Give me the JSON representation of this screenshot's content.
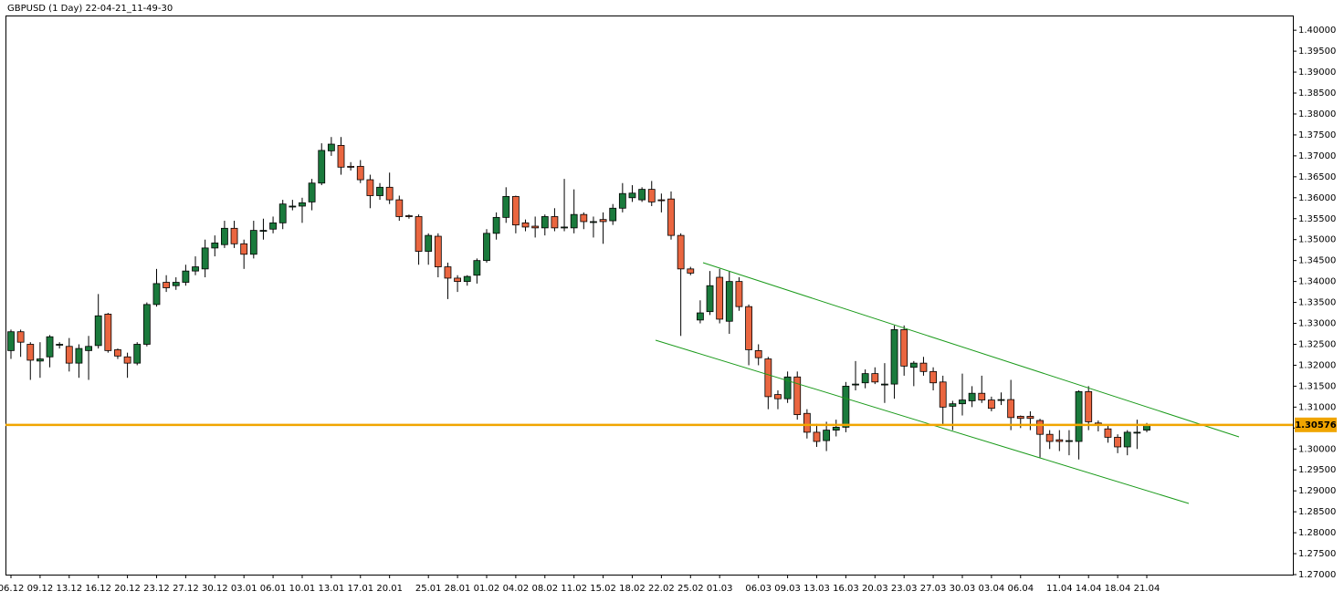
{
  "chart_data": {
    "type": "candlestick",
    "title": "GBPUSD (1 Day) 22-04-21_11-49-30",
    "categories": [
      "06.12",
      null,
      null,
      "09.12",
      null,
      null,
      "13.12",
      null,
      null,
      "16.12",
      null,
      null,
      "20.12",
      null,
      null,
      "23.12",
      null,
      null,
      "27.12",
      null,
      null,
      "30.12",
      null,
      null,
      "03.01",
      null,
      null,
      "06.01",
      null,
      null,
      "10.01",
      null,
      null,
      "13.01",
      null,
      null,
      "17.01",
      null,
      null,
      "20.01",
      null,
      null,
      null,
      "25.01",
      null,
      null,
      "28.01",
      null,
      null,
      "01.02",
      null,
      null,
      "04.02",
      null,
      null,
      "08.02",
      null,
      null,
      "11.02",
      null,
      null,
      "15.02",
      null,
      null,
      "18.02",
      null,
      null,
      "22.02",
      null,
      null,
      "25.02",
      null,
      null,
      "01.03",
      null,
      null,
      null,
      "06.03",
      null,
      null,
      "09.03",
      null,
      null,
      "13.03",
      null,
      null,
      "16.03",
      null,
      null,
      "20.03",
      null,
      null,
      "23.03",
      null,
      null,
      "27.03",
      null,
      null,
      "30.03",
      null,
      null,
      "03.04",
      null,
      null,
      "06.04",
      null,
      null,
      null,
      "11.04",
      null,
      null,
      "14.04",
      null,
      null,
      "18.04",
      null,
      null,
      "21.04"
    ],
    "open": [
      1.3235,
      1.328,
      1.325,
      1.321,
      1.322,
      1.3248,
      1.3245,
      1.3205,
      1.3235,
      1.3247,
      1.3322,
      1.3237,
      1.322,
      1.3205,
      1.325,
      1.3345,
      1.3398,
      1.339,
      1.3398,
      1.3425,
      1.343,
      1.348,
      1.3488,
      1.3527,
      1.349,
      1.3465,
      1.352,
      1.3525,
      1.354,
      1.3578,
      1.358,
      1.359,
      1.3635,
      1.3712,
      1.3725,
      1.3675,
      1.3675,
      1.3643,
      1.3605,
      1.3625,
      1.3595,
      1.3557,
      1.3555,
      1.3472,
      1.3508,
      1.3435,
      1.3408,
      1.34,
      1.3415,
      1.345,
      1.3515,
      1.3553,
      1.3603,
      1.354,
      1.3532,
      1.3528,
      1.3555,
      1.353,
      1.3528,
      1.356,
      1.3542,
      1.3548,
      1.3545,
      1.3575,
      1.36,
      1.3595,
      1.362,
      1.3595,
      1.3597,
      1.351,
      1.343,
      1.3308,
      1.3328,
      1.341,
      1.3305,
      1.34,
      1.334,
      1.3235,
      1.3215,
      1.313,
      1.312,
      1.3172,
      1.3085,
      1.304,
      1.302,
      1.3045,
      1.3052,
      1.3153,
      1.3158,
      1.318,
      1.3155,
      1.3155,
      1.3285,
      1.3195,
      1.3205,
      1.3185,
      1.316,
      1.3102,
      1.3108,
      1.3115,
      1.3133,
      1.3117,
      1.3117,
      1.3118,
      1.3078,
      1.3078,
      1.3068,
      1.3035,
      1.3022,
      1.302,
      1.3018,
      1.3137,
      1.3062,
      1.3048,
      1.3028,
      1.3005,
      1.3038,
      1.3045
    ],
    "high": [
      1.3285,
      1.3285,
      1.3255,
      1.3255,
      1.3272,
      1.3255,
      1.3265,
      1.325,
      1.327,
      1.337,
      1.3325,
      1.324,
      1.323,
      1.3255,
      1.335,
      1.343,
      1.3415,
      1.341,
      1.344,
      1.346,
      1.35,
      1.351,
      1.3545,
      1.3545,
      1.35,
      1.3545,
      1.355,
      1.3555,
      1.3595,
      1.3595,
      1.36,
      1.3645,
      1.373,
      1.3745,
      1.3745,
      1.3685,
      1.369,
      1.3655,
      1.3635,
      1.366,
      1.3605,
      1.356,
      1.356,
      1.3515,
      1.3515,
      1.3445,
      1.3415,
      1.3415,
      1.3455,
      1.3525,
      1.3565,
      1.3625,
      1.3605,
      1.3548,
      1.3555,
      1.356,
      1.3575,
      1.3645,
      1.362,
      1.3565,
      1.3555,
      1.3565,
      1.3585,
      1.3635,
      1.363,
      1.3625,
      1.364,
      1.361,
      1.3615,
      1.3515,
      1.3435,
      1.3355,
      1.3425,
      1.343,
      1.3425,
      1.341,
      1.3345,
      1.325,
      1.322,
      1.314,
      1.3185,
      1.3185,
      1.3095,
      1.306,
      1.3065,
      1.307,
      1.316,
      1.321,
      1.319,
      1.3195,
      1.3205,
      1.3295,
      1.3295,
      1.321,
      1.322,
      1.3195,
      1.3175,
      1.3115,
      1.318,
      1.315,
      1.3175,
      1.3125,
      1.3135,
      1.3165,
      1.308,
      1.309,
      1.3072,
      1.3045,
      1.3045,
      1.3045,
      1.314,
      1.315,
      1.3068,
      1.3055,
      1.3035,
      1.3045,
      1.307,
      1.3062
    ],
    "low": [
      1.3215,
      1.322,
      1.3165,
      1.317,
      1.3195,
      1.324,
      1.3185,
      1.317,
      1.3165,
      1.324,
      1.323,
      1.3215,
      1.317,
      1.32,
      1.3245,
      1.334,
      1.3375,
      1.338,
      1.339,
      1.3415,
      1.341,
      1.346,
      1.348,
      1.348,
      1.343,
      1.3455,
      1.35,
      1.3515,
      1.3525,
      1.357,
      1.354,
      1.357,
      1.363,
      1.37,
      1.3655,
      1.3665,
      1.3635,
      1.3575,
      1.3595,
      1.3585,
      1.3545,
      1.355,
      1.344,
      1.344,
      1.341,
      1.3358,
      1.3375,
      1.339,
      1.3395,
      1.3445,
      1.35,
      1.354,
      1.3515,
      1.352,
      1.3505,
      1.351,
      1.352,
      1.352,
      1.3515,
      1.3525,
      1.3505,
      1.349,
      1.3535,
      1.3565,
      1.359,
      1.359,
      1.358,
      1.3565,
      1.35,
      1.327,
      1.3415,
      1.33,
      1.332,
      1.33,
      1.3275,
      1.333,
      1.32,
      1.32,
      1.3095,
      1.3095,
      1.311,
      1.307,
      1.3025,
      1.3005,
      1.2995,
      1.303,
      1.304,
      1.314,
      1.3145,
      1.3155,
      1.311,
      1.312,
      1.3175,
      1.315,
      1.3175,
      1.314,
      1.3055,
      1.3045,
      1.308,
      1.31,
      1.311,
      1.309,
      1.3105,
      1.3045,
      1.305,
      1.3045,
      1.298,
      1.3,
      1.2995,
      1.2985,
      1.2975,
      1.3045,
      1.3042,
      1.3015,
      1.299,
      1.2985,
      1.3,
      1.304
    ],
    "close": [
      1.328,
      1.3255,
      1.3212,
      1.3215,
      1.3268,
      1.325,
      1.3205,
      1.324,
      1.3245,
      1.3318,
      1.3235,
      1.3222,
      1.3205,
      1.325,
      1.3345,
      1.3395,
      1.3385,
      1.3398,
      1.3425,
      1.3435,
      1.348,
      1.3492,
      1.3527,
      1.349,
      1.3465,
      1.3522,
      1.3522,
      1.354,
      1.3585,
      1.358,
      1.3588,
      1.3635,
      1.3713,
      1.3728,
      1.3673,
      1.3673,
      1.3643,
      1.3605,
      1.3625,
      1.3595,
      1.3555,
      1.3555,
      1.3472,
      1.351,
      1.3435,
      1.3408,
      1.34,
      1.3412,
      1.345,
      1.3515,
      1.3553,
      1.3603,
      1.3535,
      1.353,
      1.3528,
      1.3555,
      1.3528,
      1.353,
      1.356,
      1.3543,
      1.3543,
      1.3543,
      1.3575,
      1.361,
      1.3611,
      1.362,
      1.359,
      1.3594,
      1.351,
      1.343,
      1.342,
      1.3325,
      1.339,
      1.331,
      1.34,
      1.334,
      1.3237,
      1.3218,
      1.3125,
      1.312,
      1.3172,
      1.3082,
      1.304,
      1.3018,
      1.3045,
      1.3052,
      1.315,
      1.3155,
      1.318,
      1.316,
      1.3155,
      1.3285,
      1.3198,
      1.3205,
      1.3185,
      1.3158,
      1.31,
      1.3108,
      1.3117,
      1.3133,
      1.3117,
      1.3097,
      1.3118,
      1.3075,
      1.3073,
      1.3073,
      1.3035,
      1.3018,
      1.3018,
      1.302,
      1.3137,
      1.3065,
      1.3058,
      1.3028,
      1.3005,
      1.304,
      1.304,
      1.3058
    ],
    "up_color": "#1a7a3c",
    "down_color": "#ea6640",
    "price_line": {
      "value": 1.30576,
      "color": "#f0a500"
    },
    "ylim": [
      1.27,
      1.4033
    ],
    "yticks": [
      {
        "value": 1.27,
        "label": "1.27000"
      },
      {
        "value": 1.275,
        "label": "1.27500"
      },
      {
        "value": 1.28,
        "label": "1.28000"
      },
      {
        "value": 1.285,
        "label": "1.28500"
      },
      {
        "value": 1.29,
        "label": "1.29000"
      },
      {
        "value": 1.295,
        "label": "1.29500"
      },
      {
        "value": 1.3,
        "label": "1.30000"
      },
      {
        "value": 1.305,
        "label": "1.30500"
      },
      {
        "value": 1.31,
        "label": "1.31000"
      },
      {
        "value": 1.315,
        "label": "1.31500"
      },
      {
        "value": 1.32,
        "label": "1.32000"
      },
      {
        "value": 1.325,
        "label": "1.32500"
      },
      {
        "value": 1.33,
        "label": "1.33000"
      },
      {
        "value": 1.335,
        "label": "1.33500"
      },
      {
        "value": 1.34,
        "label": "1.34000"
      },
      {
        "value": 1.345,
        "label": "1.34500"
      },
      {
        "value": 1.35,
        "label": "1.35000"
      },
      {
        "value": 1.355,
        "label": "1.35500"
      },
      {
        "value": 1.36,
        "label": "1.36000"
      },
      {
        "value": 1.365,
        "label": "1.36500"
      },
      {
        "value": 1.37,
        "label": "1.37000"
      },
      {
        "value": 1.375,
        "label": "1.37500"
      },
      {
        "value": 1.38,
        "label": "1.38000"
      },
      {
        "value": 1.385,
        "label": "1.38500"
      },
      {
        "value": 1.39,
        "label": "1.39000"
      },
      {
        "value": 1.395,
        "label": "1.39500"
      },
      {
        "value": 1.4,
        "label": "1.40000"
      }
    ]
  }
}
